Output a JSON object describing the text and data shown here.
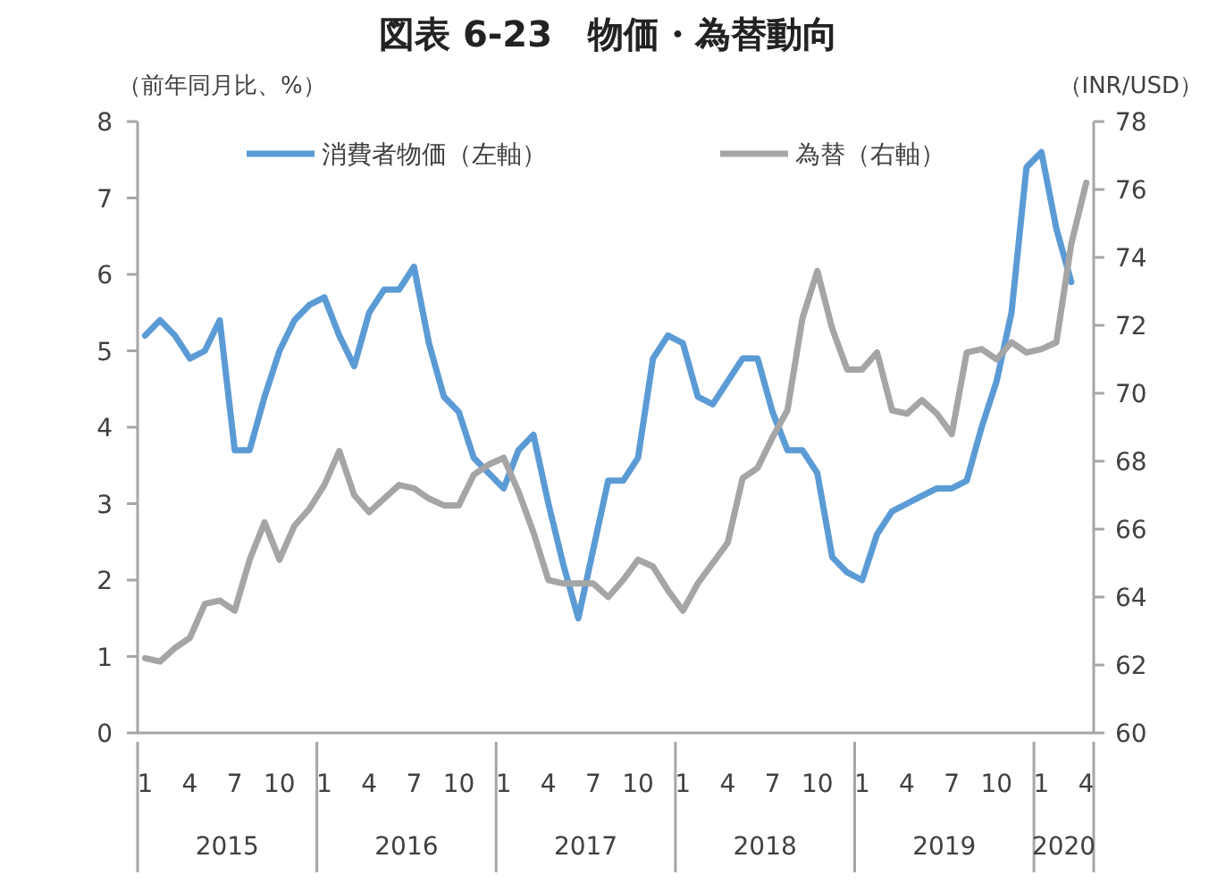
{
  "chart_data": {
    "type": "line",
    "title": "図表 6-23　物価・為替動向",
    "ylabel": "（前年同月比、%）",
    "y2label": "（INR/USD）",
    "x": [
      "2015-01",
      "2015-02",
      "2015-03",
      "2015-04",
      "2015-05",
      "2015-06",
      "2015-07",
      "2015-08",
      "2015-09",
      "2015-10",
      "2015-11",
      "2015-12",
      "2016-01",
      "2016-02",
      "2016-03",
      "2016-04",
      "2016-05",
      "2016-06",
      "2016-07",
      "2016-08",
      "2016-09",
      "2016-10",
      "2016-11",
      "2016-12",
      "2017-01",
      "2017-02",
      "2017-03",
      "2017-04",
      "2017-05",
      "2017-06",
      "2017-07",
      "2017-08",
      "2017-09",
      "2017-10",
      "2017-11",
      "2017-12",
      "2018-01",
      "2018-02",
      "2018-03",
      "2018-04",
      "2018-05",
      "2018-06",
      "2018-07",
      "2018-08",
      "2018-09",
      "2018-10",
      "2018-11",
      "2018-12",
      "2019-01",
      "2019-02",
      "2019-03",
      "2019-04",
      "2019-05",
      "2019-06",
      "2019-07",
      "2019-08",
      "2019-09",
      "2019-10",
      "2019-11",
      "2019-12",
      "2020-01",
      "2020-02",
      "2020-03",
      "2020-04"
    ],
    "series": [
      {
        "name": "消費者物価（左軸）",
        "color": "#5b9bd5",
        "values": [
          5.2,
          5.4,
          5.2,
          4.9,
          5.0,
          5.4,
          3.7,
          3.7,
          4.4,
          5.0,
          5.4,
          5.6,
          5.7,
          5.2,
          4.8,
          5.5,
          5.8,
          5.8,
          6.1,
          5.1,
          4.4,
          4.2,
          3.6,
          3.4,
          3.2,
          3.7,
          3.9,
          3.0,
          2.2,
          1.5,
          2.4,
          3.3,
          3.3,
          3.6,
          4.9,
          5.2,
          5.1,
          4.4,
          4.3,
          4.6,
          4.9,
          4.9,
          4.2,
          3.7,
          3.7,
          3.4,
          2.3,
          2.1,
          2.0,
          2.6,
          2.9,
          3.0,
          3.1,
          3.2,
          3.2,
          3.3,
          4.0,
          4.6,
          5.5,
          7.4,
          7.6,
          6.6,
          5.9,
          null
        ]
      },
      {
        "name": "為替（右軸）",
        "color": "#a5a5a5",
        "axis": "y2",
        "values": [
          62.2,
          62.1,
          62.5,
          62.8,
          63.8,
          63.9,
          63.6,
          65.1,
          66.2,
          65.1,
          66.1,
          66.6,
          67.3,
          68.3,
          67.0,
          66.5,
          66.9,
          67.3,
          67.2,
          66.9,
          66.7,
          66.7,
          67.6,
          67.9,
          68.1,
          67.1,
          65.9,
          64.5,
          64.4,
          64.4,
          64.4,
          64.0,
          64.5,
          65.1,
          64.9,
          64.2,
          63.6,
          64.4,
          65.0,
          65.6,
          67.5,
          67.8,
          68.7,
          69.5,
          72.2,
          73.6,
          71.9,
          70.7,
          70.7,
          71.2,
          69.5,
          69.4,
          69.8,
          69.4,
          68.8,
          71.2,
          71.3,
          71.0,
          71.5,
          71.2,
          71.3,
          71.5,
          74.4,
          76.2
        ]
      }
    ],
    "xlim": [
      "2015-01",
      "2020-04"
    ],
    "xticks": [
      {
        "value": "2015-01",
        "label": "1"
      },
      {
        "value": "2015-04",
        "label": "4"
      },
      {
        "value": "2015-07",
        "label": "7"
      },
      {
        "value": "2015-10",
        "label": "10"
      },
      {
        "value": "2016-01",
        "label": "1"
      },
      {
        "value": "2016-04",
        "label": "4"
      },
      {
        "value": "2016-07",
        "label": "7"
      },
      {
        "value": "2016-10",
        "label": "10"
      },
      {
        "value": "2017-01",
        "label": "1"
      },
      {
        "value": "2017-04",
        "label": "4"
      },
      {
        "value": "2017-07",
        "label": "7"
      },
      {
        "value": "2017-10",
        "label": "10"
      },
      {
        "value": "2018-01",
        "label": "1"
      },
      {
        "value": "2018-04",
        "label": "4"
      },
      {
        "value": "2018-07",
        "label": "7"
      },
      {
        "value": "2018-10",
        "label": "10"
      },
      {
        "value": "2019-01",
        "label": "1"
      },
      {
        "value": "2019-04",
        "label": "4"
      },
      {
        "value": "2019-07",
        "label": "7"
      },
      {
        "value": "2019-10",
        "label": "10"
      },
      {
        "value": "2020-01",
        "label": "1"
      },
      {
        "value": "2020-04",
        "label": "4"
      }
    ],
    "annotations": [
      "2015",
      "2016",
      "2017",
      "2018",
      "2019",
      "2020"
    ],
    "ylim": [
      0,
      8
    ],
    "yticks": [
      0,
      1,
      2,
      3,
      4,
      5,
      6,
      7,
      8
    ],
    "y2lim": [
      60,
      78
    ],
    "y2ticks": [
      60,
      62,
      64,
      66,
      68,
      70,
      72,
      74,
      76,
      78
    ],
    "legend": "top",
    "grid": false,
    "marker": "none",
    "line_style": "solid"
  }
}
